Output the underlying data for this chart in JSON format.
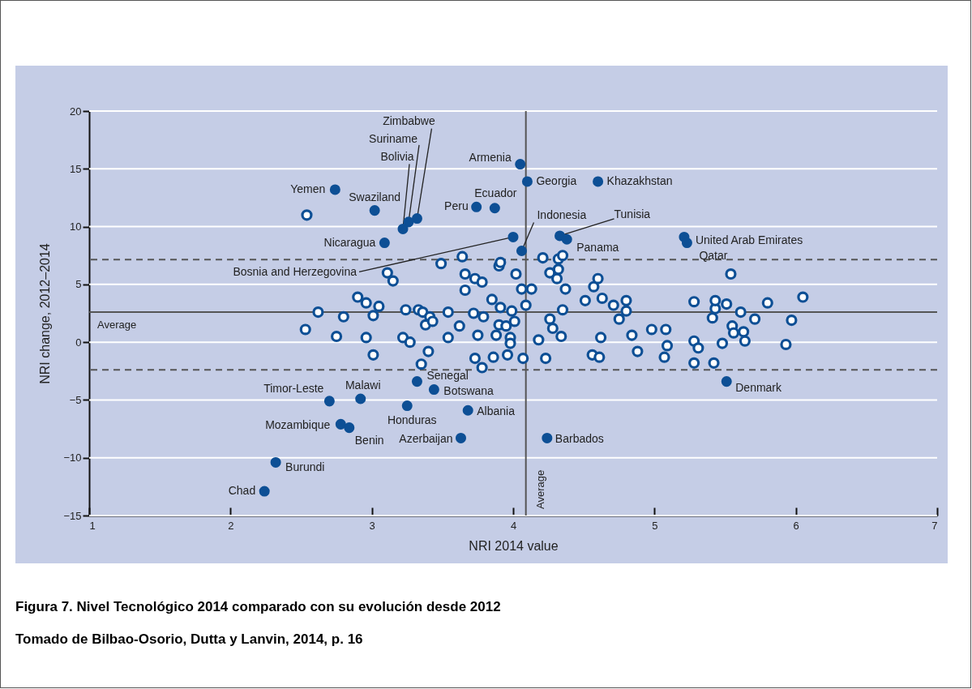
{
  "chart_data": {
    "type": "scatter",
    "xlabel": "NRI 2014 value",
    "ylabel": "NRI change, 2012–2014",
    "xlim": [
      1,
      7
    ],
    "xticks": [
      1,
      2,
      3,
      4,
      5,
      6,
      7
    ],
    "ylim": [
      -15,
      20
    ],
    "yticks": [
      -15,
      -10,
      -5,
      0,
      5,
      10,
      15,
      20
    ],
    "grid": "y",
    "marker": "circle",
    "series": [
      {
        "color": "#0d4f95",
        "x": [
          3.32,
          3.26,
          3.22,
          4.05,
          4.1,
          4.6,
          2.74,
          3.02,
          3.74,
          3.87,
          4.06,
          4.0,
          4.33,
          4.38,
          5.21,
          5.23,
          3.09,
          3.32,
          3.44,
          2.7,
          2.92,
          3.25,
          3.68,
          2.78,
          2.84,
          3.63,
          4.24,
          5.51,
          2.32,
          2.24
        ],
        "values": [
          10.7,
          10.4,
          9.8,
          15.4,
          13.9,
          13.9,
          13.2,
          11.4,
          11.7,
          11.6,
          7.9,
          9.1,
          9.2,
          8.9,
          9.1,
          8.6,
          8.6,
          -3.4,
          -4.1,
          -5.1,
          -4.9,
          -5.5,
          -5.9,
          -7.1,
          -7.4,
          -8.3,
          -8.3,
          -3.4,
          -10.4,
          -12.9
        ]
      },
      {
        "color": "#0d4f95",
        "x": [
          2.54,
          2.53,
          2.62,
          2.75,
          2.8,
          2.9,
          2.96,
          2.96,
          3.01,
          3.01,
          3.05,
          3.11,
          3.15,
          3.24,
          3.22,
          3.27,
          3.33,
          3.36,
          3.38,
          3.41,
          3.43,
          3.4,
          3.35,
          3.49,
          3.54,
          3.54,
          3.62,
          3.64,
          3.66,
          3.66,
          3.72,
          3.73,
          3.75,
          3.73,
          3.78,
          3.79,
          3.78,
          3.85,
          3.86,
          3.88,
          3.9,
          3.9,
          3.91,
          3.91,
          3.95,
          3.96,
          3.98,
          3.99,
          3.98,
          4.01,
          4.02,
          4.06,
          4.07,
          4.09,
          4.13,
          4.18,
          4.21,
          4.23,
          4.26,
          4.26,
          4.28,
          4.31,
          4.32,
          4.32,
          4.34,
          4.35,
          4.37,
          4.35,
          4.51,
          4.56,
          4.57,
          4.6,
          4.61,
          4.62,
          4.63,
          4.71,
          4.75,
          4.8,
          4.8,
          4.84,
          4.88,
          4.98,
          5.08,
          5.09,
          5.07,
          5.28,
          5.28,
          5.28,
          5.31,
          5.41,
          5.43,
          5.43,
          5.42,
          5.48,
          5.51,
          5.54,
          5.55,
          5.56,
          5.61,
          5.63,
          5.64,
          5.71,
          5.8,
          5.93,
          5.97,
          6.05
        ],
        "values": [
          11.0,
          1.1,
          2.6,
          0.5,
          2.2,
          3.9,
          3.4,
          0.4,
          -1.1,
          2.3,
          3.1,
          6.0,
          5.3,
          2.8,
          0.4,
          0.0,
          2.8,
          2.6,
          1.5,
          2.2,
          1.8,
          -0.8,
          -1.9,
          6.8,
          2.6,
          0.4,
          1.4,
          7.4,
          5.9,
          4.5,
          2.5,
          5.5,
          0.6,
          -1.4,
          5.2,
          2.2,
          -2.2,
          3.7,
          -1.3,
          0.6,
          1.5,
          6.6,
          6.9,
          3.0,
          1.4,
          -1.1,
          0.4,
          2.7,
          -0.1,
          1.8,
          5.9,
          4.6,
          -1.4,
          3.2,
          4.6,
          0.2,
          7.3,
          -1.4,
          2.0,
          6.0,
          1.2,
          5.5,
          6.3,
          7.2,
          0.5,
          2.8,
          4.6,
          7.5,
          3.6,
          -1.1,
          4.8,
          5.5,
          -1.3,
          0.4,
          3.8,
          3.2,
          2.0,
          2.7,
          3.6,
          0.6,
          -0.8,
          1.1,
          1.1,
          -0.3,
          -1.3,
          3.5,
          0.1,
          -1.8,
          -0.5,
          2.1,
          2.9,
          3.6,
          -1.8,
          -0.1,
          3.3,
          5.9,
          1.4,
          0.8,
          2.6,
          0.9,
          0.1,
          2.0,
          3.4,
          -0.2,
          1.9,
          3.9
        ]
      }
    ],
    "ref_lines": [
      {
        "axis": "y",
        "value": 2.6,
        "label": "Average",
        "color": "#555555"
      },
      {
        "axis": "x",
        "value": 4.09,
        "label": "Average",
        "color": "#555555"
      },
      {
        "axis": "y",
        "value": 7.15,
        "color": "#555555",
        "line_style": "dashed"
      },
      {
        "axis": "y",
        "value": -2.4,
        "color": "#555555",
        "line_style": "dashed"
      }
    ],
    "annotations": [
      {
        "text": "Zimbabwe",
        "x": 3.32,
        "y": 10.7
      },
      {
        "text": "Suriname",
        "x": 3.26,
        "y": 10.4
      },
      {
        "text": "Bolivia",
        "x": 3.22,
        "y": 9.8
      },
      {
        "text": "Armenia",
        "x": 4.05,
        "y": 15.4
      },
      {
        "text": "Georgia",
        "x": 4.1,
        "y": 13.9
      },
      {
        "text": "Khazakhstan",
        "x": 4.6,
        "y": 13.9
      },
      {
        "text": "Yemen",
        "x": 2.74,
        "y": 13.2
      },
      {
        "text": "Swaziland",
        "x": 3.02,
        "y": 11.4
      },
      {
        "text": "Peru",
        "x": 3.74,
        "y": 11.7
      },
      {
        "text": "Ecuador",
        "x": 3.87,
        "y": 11.6
      },
      {
        "text": "Indonesia",
        "x": 4.06,
        "y": 7.9
      },
      {
        "text": "Bosnia and Herzegovina",
        "x": 4.0,
        "y": 9.1
      },
      {
        "text": "Tunisia",
        "x": 4.33,
        "y": 9.2
      },
      {
        "text": "Panama",
        "x": 4.38,
        "y": 8.9
      },
      {
        "text": "United Arab Emirates",
        "x": 5.21,
        "y": 9.1
      },
      {
        "text": "Qatar",
        "x": 5.23,
        "y": 8.6
      },
      {
        "text": "Nicaragua",
        "x": 3.09,
        "y": 8.6
      },
      {
        "text": "Senegal",
        "x": 3.32,
        "y": -3.4
      },
      {
        "text": "Botswana",
        "x": 3.44,
        "y": -4.1
      },
      {
        "text": "Timor-Leste",
        "x": 2.7,
        "y": -5.1
      },
      {
        "text": "Malawi",
        "x": 2.92,
        "y": -4.9
      },
      {
        "text": "Honduras",
        "x": 3.25,
        "y": -5.5
      },
      {
        "text": "Albania",
        "x": 3.68,
        "y": -5.9
      },
      {
        "text": "Mozambique",
        "x": 2.78,
        "y": -7.1
      },
      {
        "text": "Benin",
        "x": 2.84,
        "y": -7.4
      },
      {
        "text": "Azerbaijan",
        "x": 3.63,
        "y": -8.3
      },
      {
        "text": "Barbados",
        "x": 4.24,
        "y": -8.3
      },
      {
        "text": "Denmark",
        "x": 5.51,
        "y": -3.4
      },
      {
        "text": "Burundi",
        "x": 2.32,
        "y": -10.4
      },
      {
        "text": "Chad",
        "x": 2.24,
        "y": -12.9
      },
      "Figura 7. Nivel Tecnológico 2014 comparado con su evolución desde 2012",
      "Tomado de Bilbao-Osorio, Dutta y Lanvin, 2014, p. 16"
    ]
  }
}
